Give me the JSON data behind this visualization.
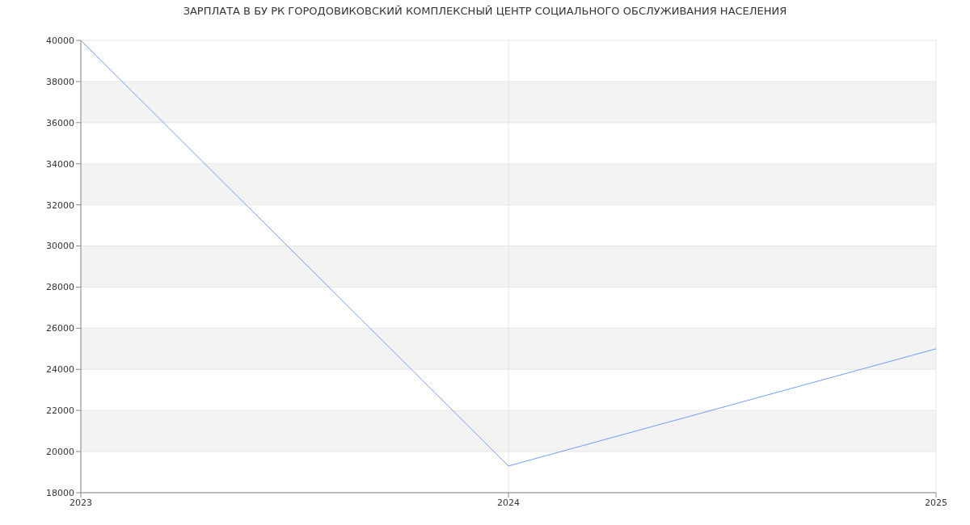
{
  "chart_data": {
    "type": "line",
    "title": "ЗАРПЛАТА В БУ РК ГОРОДОВИКОВСКИЙ КОМПЛЕКСНЫЙ ЦЕНТР СОЦИАЛЬНОГО ОБСЛУЖИВАНИЯ НАСЕЛЕНИЯ",
    "x": [
      2023,
      2024,
      2025
    ],
    "series": [
      {
        "color": "#6f9ef8",
        "values": [
          40000,
          19300,
          25000
        ]
      }
    ],
    "xlim": [
      2023,
      2025
    ],
    "xticks": [
      2023,
      2024,
      2025
    ],
    "ylim": [
      18000,
      40000
    ],
    "yticks": [
      18000,
      20000,
      22000,
      24000,
      26000,
      28000,
      30000,
      32000,
      34000,
      36000,
      38000,
      40000
    ],
    "grid": true
  }
}
